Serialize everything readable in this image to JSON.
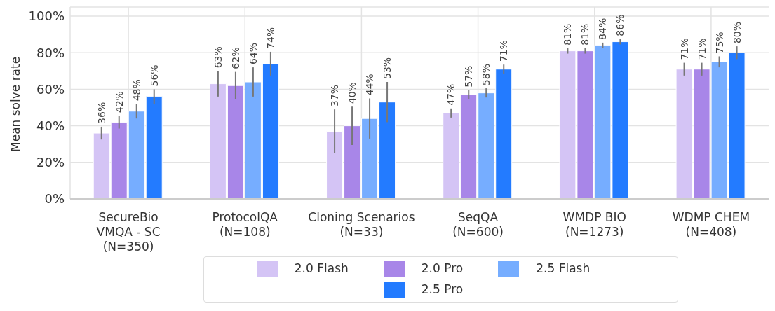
{
  "chart_data": {
    "type": "bar",
    "ylabel": "Mean solve rate",
    "categories": [
      "SecureBio\nVMQA - SC\n(N=350)",
      "ProtocolQA\n(N=108)",
      "Cloning Scenarios\n(N=33)",
      "SeqQA\n(N=600)",
      "WMDP BIO\n(N=1273)",
      "WDMP CHEM\n(N=408)"
    ],
    "series": [
      {
        "name": "2.0 Flash",
        "color": "#d4c4f5",
        "values": [
          36,
          63,
          37,
          47,
          81,
          71
        ],
        "errors": [
          3.5,
          7,
          12,
          2.5,
          1.5,
          3.5
        ],
        "value_labels": [
          "36%",
          "63%",
          "37%",
          "47%",
          "81%",
          "71%"
        ]
      },
      {
        "name": "2.0 Pro",
        "color": "#a886e8",
        "values": [
          42,
          62,
          40,
          57,
          81,
          71
        ],
        "errors": [
          3.5,
          7.5,
          10.5,
          2.5,
          1.5,
          3.5
        ],
        "value_labels": [
          "42%",
          "62%",
          "40%",
          "57%",
          "81%",
          "71%"
        ]
      },
      {
        "name": "2.5 Flash",
        "color": "#76adff",
        "values": [
          48,
          64,
          44,
          58,
          84,
          75
        ],
        "errors": [
          4,
          8,
          11,
          2.5,
          1.5,
          3
        ],
        "value_labels": [
          "48%",
          "64%",
          "44%",
          "58%",
          "84%",
          "75%"
        ]
      },
      {
        "name": "2.5 Pro",
        "color": "#237bff",
        "values": [
          56,
          74,
          53,
          71,
          86,
          80
        ],
        "errors": [
          4,
          6.5,
          11,
          2.5,
          1.5,
          3.5
        ],
        "value_labels": [
          "56%",
          "74%",
          "53%",
          "71%",
          "86%",
          "80%"
        ]
      }
    ],
    "ylim": [
      0,
      105
    ],
    "yticks": [
      {
        "value": 0,
        "label": "0%"
      },
      {
        "value": 20,
        "label": "20%"
      },
      {
        "value": 40,
        "label": "40%"
      },
      {
        "value": 60,
        "label": "60%"
      },
      {
        "value": 80,
        "label": "80%"
      },
      {
        "value": 100,
        "label": "100%"
      }
    ],
    "grid": true,
    "legend": "bottom"
  }
}
